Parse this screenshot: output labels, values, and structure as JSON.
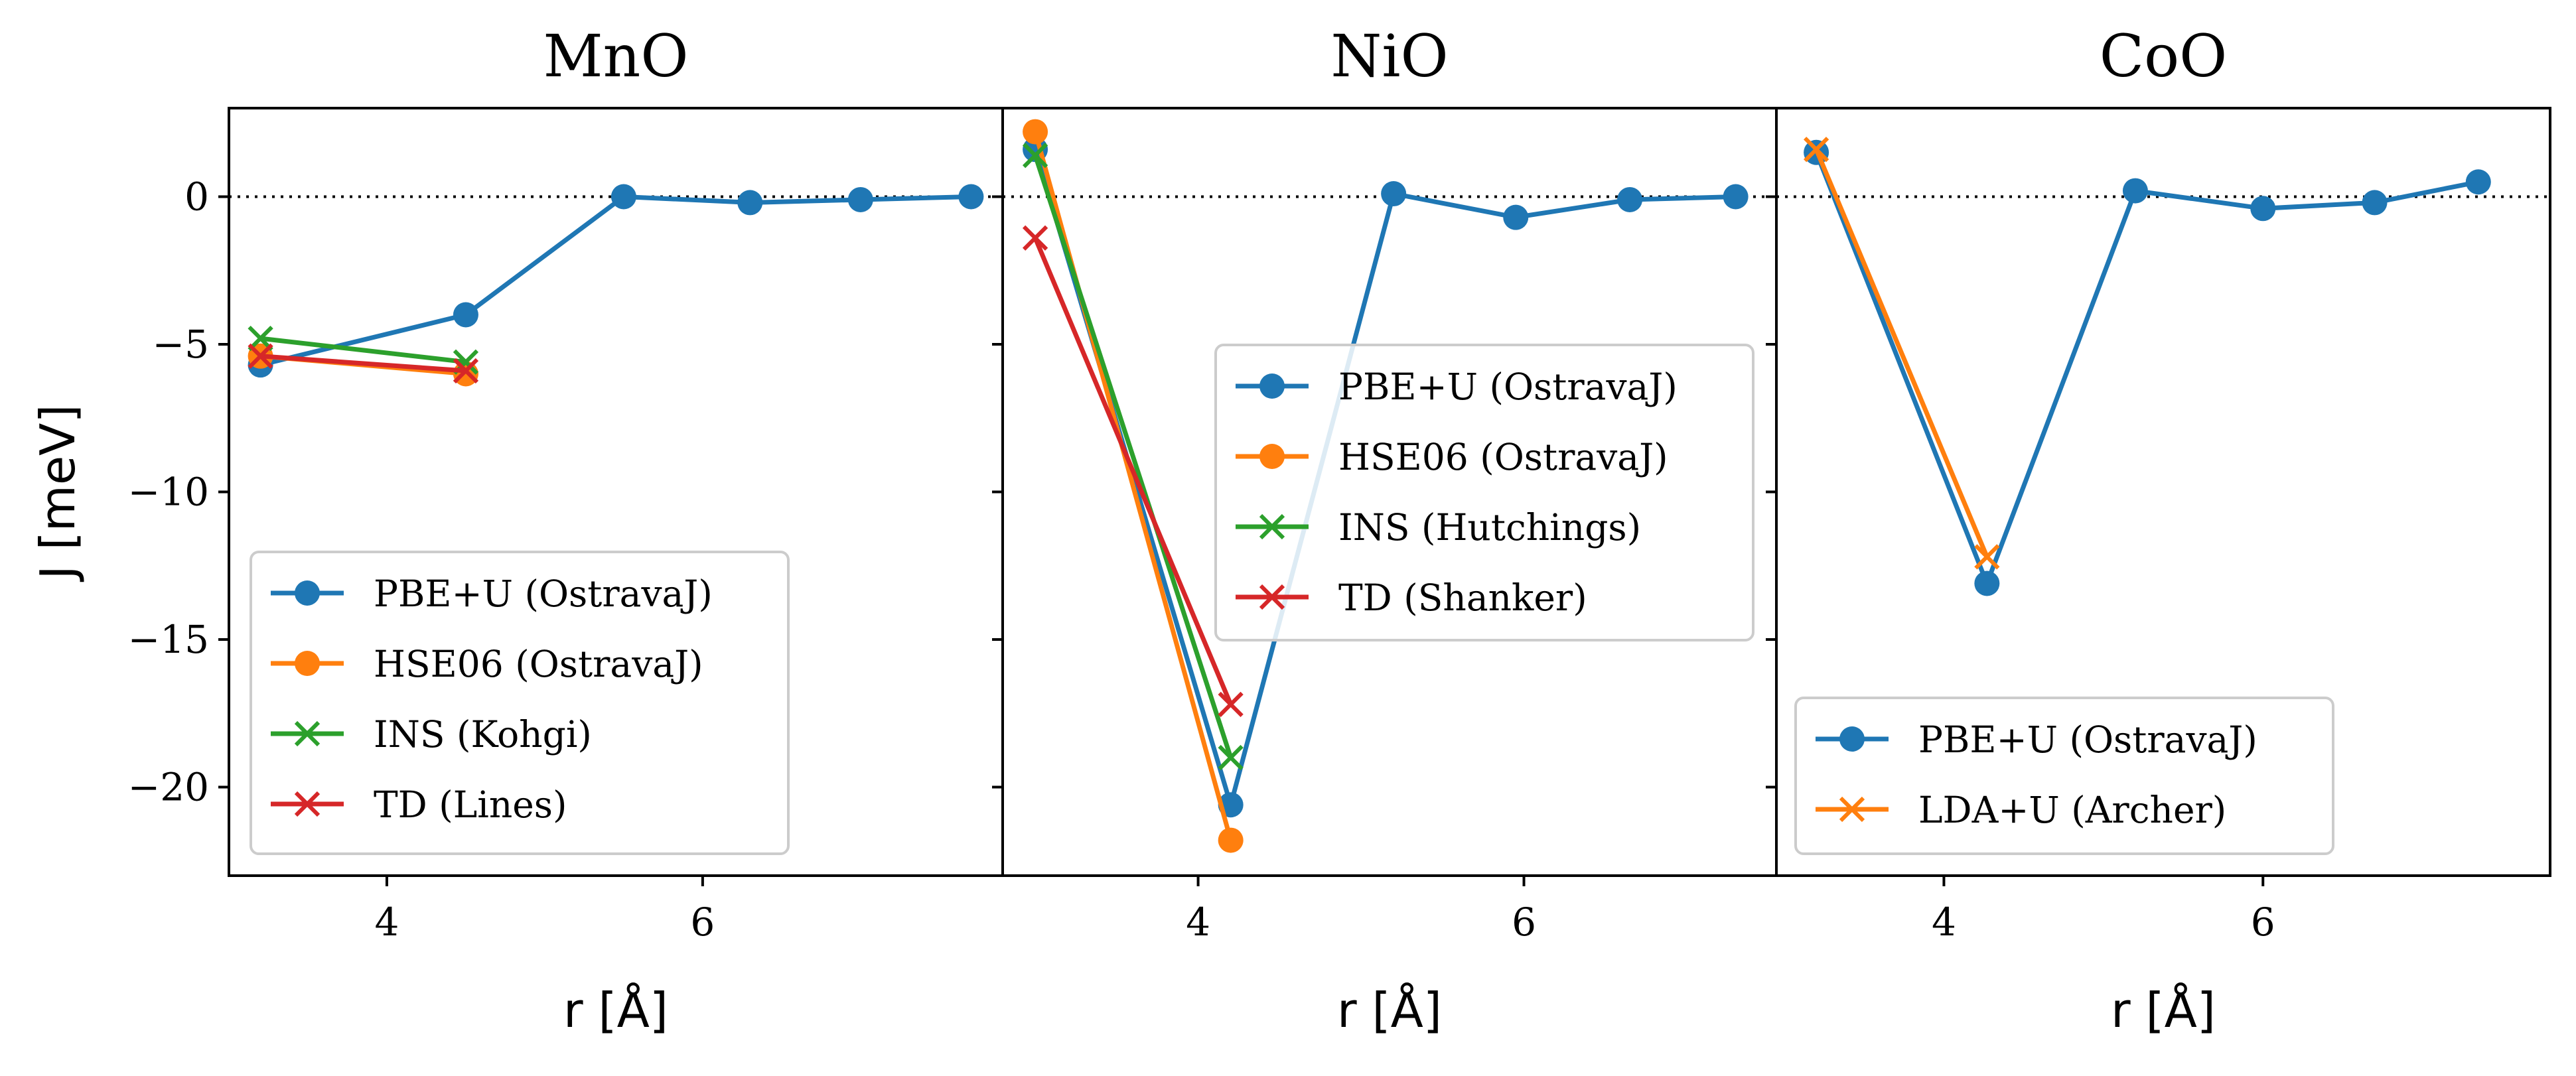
{
  "chart_data": [
    {
      "type": "line",
      "title": "MnO",
      "xlabel": "r [Å]",
      "ylabel": "J [meV]",
      "xlim": [
        3.0,
        7.9
      ],
      "ylim": [
        -23,
        3
      ],
      "xticks": [
        4,
        6
      ],
      "yticks": [
        0,
        -5,
        -10,
        -15,
        -20
      ],
      "ytick_labels": [
        "0",
        "−5",
        "−10",
        "−15",
        "−20"
      ],
      "zero_line": true,
      "legend_position": "lower-left",
      "series": [
        {
          "name": "PBE+U (OstravaJ)",
          "marker": "circle",
          "color": "#1f77b4",
          "x": [
            3.2,
            4.5,
            5.5,
            6.3,
            7.0,
            7.7
          ],
          "y": [
            -5.7,
            -4.0,
            0.0,
            -0.2,
            -0.1,
            0.0
          ]
        },
        {
          "name": "HSE06 (OstravaJ)",
          "marker": "circle",
          "color": "#ff7f0e",
          "x": [
            3.2,
            4.5
          ],
          "y": [
            -5.4,
            -6.0
          ]
        },
        {
          "name": "INS (Kohgi)",
          "marker": "x",
          "color": "#2ca02c",
          "x": [
            3.2,
            4.5
          ],
          "y": [
            -4.8,
            -5.6
          ]
        },
        {
          "name": "TD (Lines)",
          "marker": "x",
          "color": "#d62728",
          "x": [
            3.2,
            4.5
          ],
          "y": [
            -5.4,
            -5.9
          ]
        }
      ]
    },
    {
      "type": "line",
      "title": "NiO",
      "xlabel": "r [Å]",
      "xlim": [
        2.8,
        7.55
      ],
      "ylim": [
        -23,
        3
      ],
      "xticks": [
        4,
        6
      ],
      "zero_line": true,
      "legend_position": "center-right",
      "series": [
        {
          "name": "PBE+U (OstravaJ)",
          "marker": "circle",
          "color": "#1f77b4",
          "x": [
            3.0,
            4.2,
            5.2,
            5.95,
            6.65,
            7.3
          ],
          "y": [
            1.6,
            -20.6,
            0.1,
            -0.7,
            -0.1,
            0.0
          ]
        },
        {
          "name": "HSE06 (OstravaJ)",
          "marker": "circle",
          "color": "#ff7f0e",
          "x": [
            3.0,
            4.2
          ],
          "y": [
            2.2,
            -21.8
          ]
        },
        {
          "name": "INS (Hutchings)",
          "marker": "x",
          "color": "#2ca02c",
          "x": [
            3.0,
            4.2
          ],
          "y": [
            1.4,
            -19.0
          ]
        },
        {
          "name": "TD (Shanker)",
          "marker": "x",
          "color": "#d62728",
          "x": [
            3.0,
            4.2
          ],
          "y": [
            -1.4,
            -17.2
          ]
        }
      ]
    },
    {
      "type": "line",
      "title": "CoO",
      "xlabel": "r [Å]",
      "xlim": [
        2.95,
        7.8
      ],
      "ylim": [
        -23,
        3
      ],
      "xticks": [
        4,
        6
      ],
      "zero_line": true,
      "legend_position": "lower-left",
      "series": [
        {
          "name": "PBE+U (OstravaJ)",
          "marker": "circle",
          "color": "#1f77b4",
          "x": [
            3.2,
            4.27,
            5.2,
            6.0,
            6.7,
            7.35
          ],
          "y": [
            1.5,
            -13.1,
            0.2,
            -0.4,
            -0.2,
            0.5
          ]
        },
        {
          "name": "LDA+U (Archer)",
          "marker": "x",
          "color": "#ff7f0e",
          "x": [
            3.2,
            4.27
          ],
          "y": [
            1.6,
            -12.2
          ]
        }
      ]
    }
  ]
}
